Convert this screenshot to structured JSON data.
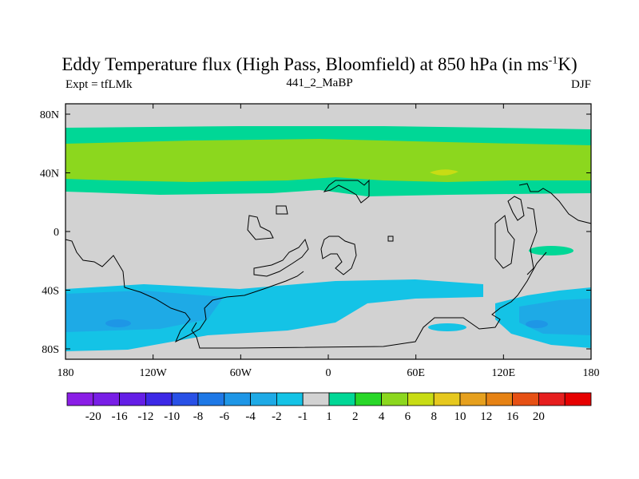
{
  "title": {
    "main": "Eddy Temperature flux (High Pass, Bloomfield) at 850 hPa (in ms",
    "sup": "-1",
    "tail": "K)"
  },
  "subtitle": {
    "left": "Expt = tfLMk",
    "center": "441_2_MaBP",
    "right": "DJF"
  },
  "axes": {
    "x_ticks": [
      "180",
      "120W",
      "60W",
      "0",
      "60E",
      "120E",
      "180"
    ],
    "y_ticks": [
      "80N",
      "40N",
      "0",
      "40S",
      "80S"
    ]
  },
  "colorbar": {
    "labels": [
      "-20",
      "-16",
      "-12",
      "-10",
      "-8",
      "-6",
      "-4",
      "-2",
      "-1",
      "1",
      "2",
      "4",
      "6",
      "8",
      "10",
      "12",
      "16",
      "20"
    ],
    "colors": [
      "#8a1ee6",
      "#781ee6",
      "#641ee6",
      "#3c28e6",
      "#2850e6",
      "#1e78e6",
      "#1e96e6",
      "#1eaae6",
      "#14c3e6",
      "#d2d2d2",
      "#00d796",
      "#28d728",
      "#8cd71e",
      "#c8dc14",
      "#e6c81e",
      "#e6a01e",
      "#e68214",
      "#e65014",
      "#e61e1e",
      "#e60000"
    ]
  },
  "colors": {
    "land_outline": "#000000",
    "neutral": "#d2d2d2",
    "light_green": "#00d796",
    "green": "#8cd71e",
    "yellow": "#c8dc14",
    "light_blue": "#14c3e6",
    "blue": "#1eaae6",
    "dark_blue": "#1e96e6"
  }
}
